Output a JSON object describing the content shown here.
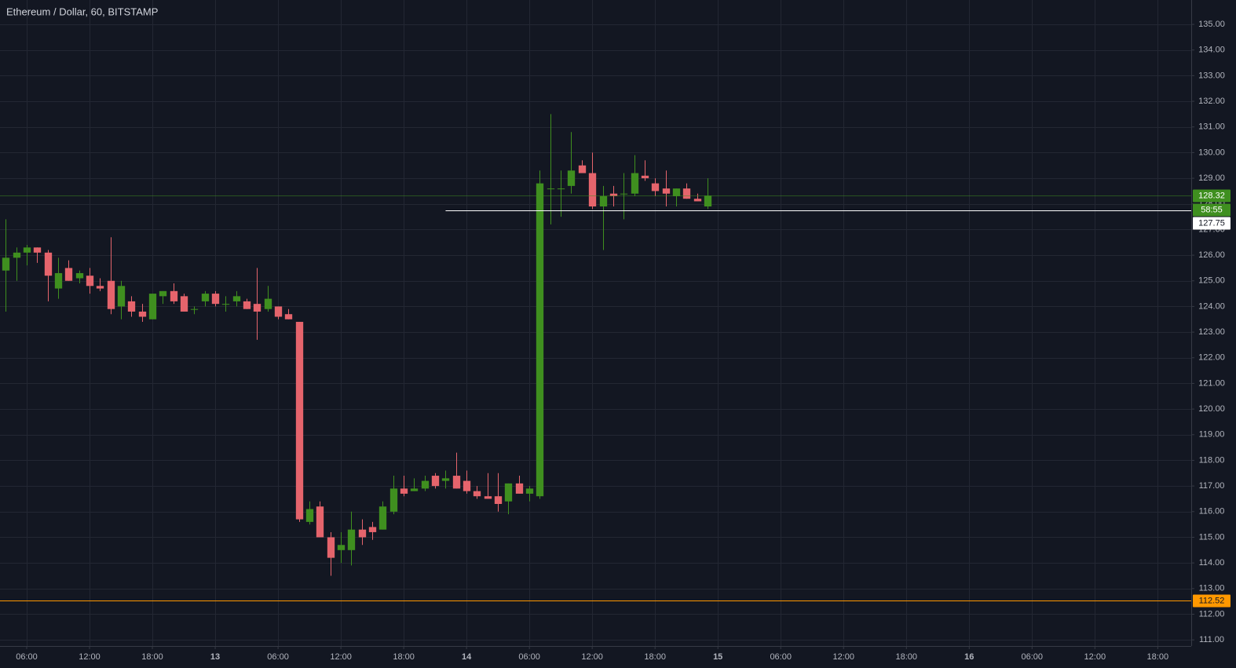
{
  "chart_data": {
    "type": "candlestick",
    "title": "Ethereum / Dollar, 60, BITSTAMP",
    "up_color": "#3f8f1f",
    "down_color": "#e5646c",
    "grid": true,
    "x": [
      4,
      5,
      6,
      7,
      8,
      9,
      10,
      11,
      12,
      13,
      14,
      15,
      16,
      17,
      18,
      19,
      20,
      21,
      22,
      23,
      24,
      25,
      26,
      27,
      28,
      29,
      30,
      31,
      32,
      33,
      34,
      35,
      36,
      37,
      38,
      39,
      40,
      41,
      42,
      43,
      44,
      45,
      46,
      47,
      48,
      49,
      50,
      51,
      52,
      53,
      54,
      55,
      56,
      57,
      58,
      59,
      60,
      61,
      62,
      63,
      64,
      65,
      66,
      67,
      68,
      69,
      70,
      71
    ],
    "open": [
      125.4,
      125.9,
      126.1,
      126.3,
      126.1,
      124.7,
      125.5,
      125.1,
      125.2,
      124.8,
      125.0,
      124.0,
      124.2,
      123.8,
      123.5,
      124.4,
      124.6,
      124.4,
      123.9,
      124.2,
      124.5,
      124.1,
      124.2,
      124.2,
      124.1,
      123.9,
      124.0,
      123.7,
      123.4,
      115.6,
      116.2,
      115.0,
      114.5,
      114.5,
      115.3,
      115.4,
      115.3,
      116.0,
      116.9,
      116.8,
      116.9,
      117.4,
      117.2,
      117.4,
      117.2,
      116.8,
      116.6,
      116.6,
      116.4,
      117.1,
      116.7,
      116.6,
      128.6,
      128.6,
      128.7,
      129.5,
      129.2,
      127.9,
      128.4,
      128.4,
      128.4,
      129.1,
      128.8,
      128.6,
      128.3,
      128.6,
      128.2,
      127.9
    ],
    "high": [
      127.4,
      126.3,
      126.4,
      126.3,
      126.2,
      125.9,
      125.8,
      125.4,
      125.5,
      125.1,
      126.7,
      125.0,
      124.4,
      124.1,
      124.5,
      124.6,
      124.9,
      124.5,
      124.0,
      124.6,
      124.6,
      124.4,
      124.6,
      124.3,
      125.5,
      124.8,
      124.0,
      123.9,
      123.4,
      116.4,
      116.4,
      115.2,
      115.2,
      116.0,
      115.7,
      115.6,
      116.4,
      117.4,
      117.4,
      117.3,
      117.4,
      117.5,
      117.6,
      118.3,
      117.6,
      117.0,
      117.5,
      117.5,
      117.1,
      117.4,
      117.0,
      129.3,
      131.5,
      129.3,
      130.8,
      129.7,
      130.0,
      128.7,
      128.7,
      129.2,
      129.9,
      129.7,
      129.0,
      129.3,
      128.6,
      128.8,
      128.4,
      129.0
    ],
    "low": [
      123.8,
      125.0,
      125.6,
      125.7,
      124.2,
      124.3,
      125.0,
      124.9,
      124.5,
      124.6,
      123.7,
      123.5,
      123.6,
      123.4,
      123.5,
      124.1,
      124.1,
      123.8,
      123.7,
      124.0,
      124.0,
      123.8,
      124.0,
      123.9,
      122.7,
      123.8,
      123.5,
      123.5,
      115.6,
      115.5,
      115.0,
      113.5,
      114.0,
      113.9,
      114.7,
      114.9,
      115.3,
      115.9,
      116.6,
      116.8,
      116.8,
      116.9,
      116.9,
      116.9,
      116.7,
      116.5,
      116.5,
      116.0,
      115.9,
      116.7,
      116.4,
      116.5,
      127.2,
      127.5,
      128.4,
      129.2,
      127.8,
      126.2,
      127.9,
      127.4,
      128.3,
      128.9,
      128.3,
      127.9,
      127.9,
      128.2,
      128.1,
      127.8
    ],
    "close": [
      125.9,
      126.1,
      126.3,
      126.1,
      125.2,
      125.3,
      125.0,
      125.3,
      124.8,
      124.7,
      123.9,
      124.8,
      123.8,
      123.6,
      124.5,
      124.6,
      124.2,
      123.8,
      123.9,
      124.5,
      124.1,
      124.1,
      124.4,
      123.9,
      123.8,
      124.3,
      123.6,
      123.5,
      115.7,
      116.1,
      115.0,
      114.2,
      114.7,
      115.3,
      115.0,
      115.2,
      116.2,
      116.9,
      116.7,
      116.9,
      117.2,
      117.0,
      117.3,
      116.9,
      116.8,
      116.6,
      116.5,
      116.3,
      117.1,
      116.7,
      116.9,
      128.8,
      128.6,
      128.6,
      129.3,
      129.2,
      127.9,
      128.3,
      128.3,
      128.4,
      129.2,
      129.0,
      128.5,
      128.4,
      128.6,
      128.2,
      128.1,
      128.32
    ],
    "xlim": [
      3.45,
      117.2
    ],
    "ylim": [
      110.76,
      135.95
    ],
    "xticks": [
      {
        "value": 6,
        "label": "06:00"
      },
      {
        "value": 12,
        "label": "12:00"
      },
      {
        "value": 18,
        "label": "18:00"
      },
      {
        "value": 24,
        "label": "13"
      },
      {
        "value": 30,
        "label": "06:00"
      },
      {
        "value": 36,
        "label": "12:00"
      },
      {
        "value": 42,
        "label": "18:00"
      },
      {
        "value": 48,
        "label": "14"
      },
      {
        "value": 54,
        "label": "06:00"
      },
      {
        "value": 60,
        "label": "12:00"
      },
      {
        "value": 66,
        "label": "18:00"
      },
      {
        "value": 72,
        "label": "15"
      },
      {
        "value": 78,
        "label": "06:00"
      },
      {
        "value": 84,
        "label": "12:00"
      },
      {
        "value": 90,
        "label": "18:00"
      },
      {
        "value": 96,
        "label": "16"
      },
      {
        "value": 102,
        "label": "06:00"
      },
      {
        "value": 108,
        "label": "12:00"
      },
      {
        "value": 114,
        "label": "18:00"
      }
    ],
    "yticks": [
      {
        "value": 111,
        "label": "111.00"
      },
      {
        "value": 112,
        "label": "112.00"
      },
      {
        "value": 113,
        "label": "113.00"
      },
      {
        "value": 114,
        "label": "114.00"
      },
      {
        "value": 115,
        "label": "115.00"
      },
      {
        "value": 116,
        "label": "116.00"
      },
      {
        "value": 117,
        "label": "117.00"
      },
      {
        "value": 118,
        "label": "118.00"
      },
      {
        "value": 119,
        "label": "119.00"
      },
      {
        "value": 120,
        "label": "120.00"
      },
      {
        "value": 121,
        "label": "121.00"
      },
      {
        "value": 122,
        "label": "122.00"
      },
      {
        "value": 123,
        "label": "123.00"
      },
      {
        "value": 124,
        "label": "124.00"
      },
      {
        "value": 125,
        "label": "125.00"
      },
      {
        "value": 126,
        "label": "126.00"
      },
      {
        "value": 127,
        "label": "127.00"
      },
      {
        "value": 128,
        "label": "128.00"
      },
      {
        "value": 129,
        "label": "129.00"
      },
      {
        "value": 130,
        "label": "130.00"
      },
      {
        "value": 131,
        "label": "131.00"
      },
      {
        "value": 132,
        "label": "132.00"
      },
      {
        "value": 133,
        "label": "133.00"
      },
      {
        "value": 134,
        "label": "134.00"
      },
      {
        "value": 135,
        "label": "135.00"
      }
    ],
    "hlines": [
      {
        "value": 112.52,
        "color": "#ff9800",
        "text_color": "#131722"
      },
      {
        "value": 127.75,
        "x_start": 46,
        "color": "#ffffff",
        "text_color": "#131722"
      }
    ],
    "last_price": {
      "value": 128.32,
      "color": "#3f8f1f",
      "countdown": "58:55"
    }
  }
}
